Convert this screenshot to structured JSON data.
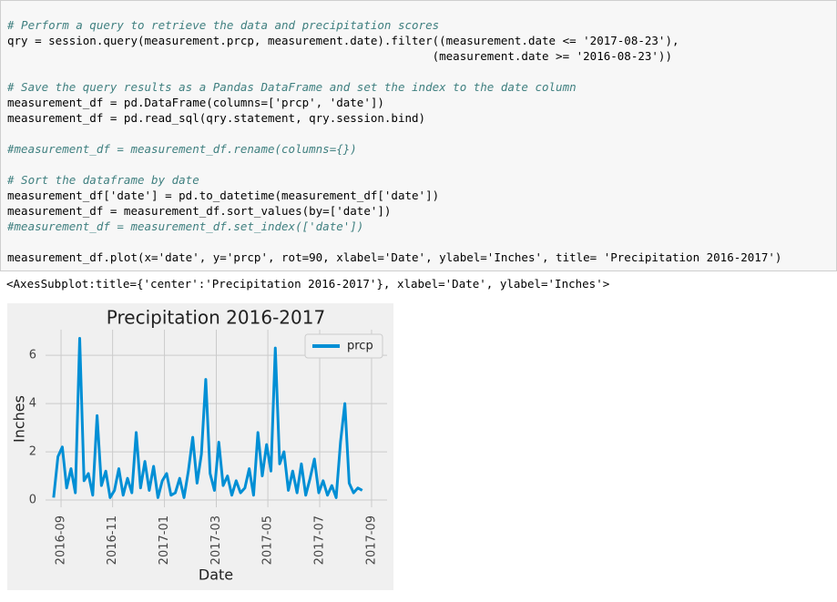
{
  "code": {
    "lines": [
      "# Perform a query to retrieve the data and precipitation scores",
      "qry = session.query(measurement.prcp, measurement.date).filter((measurement.date <= '2017-08-23'),",
      "                                                              (measurement.date >= '2016-08-23'))",
      "# Save the query results as a Pandas DataFrame and set the index to the date column",
      "measurement_df = pd.DataFrame(columns=['prcp', 'date'])",
      "measurement_df = pd.read_sql(qry.statement, qry.session.bind)",
      "#measurement_df = measurement_df.rename(columns={})",
      "# Sort the dataframe by date",
      "measurement_df['date'] = pd.to_datetime(measurement_df['date'])",
      "measurement_df = measurement_df.sort_values(by=['date'])",
      "#measurement_df = measurement_df.set_index(['date'])",
      "measurement_df.plot(x='date', y='prcp', rot=90, xlabel='Date', ylabel='Inches', title= 'Precipitation 2016-2017')"
    ]
  },
  "output": "<AxesSubplot:title={'center':'Precipitation 2016-2017'}, xlabel='Date', ylabel='Inches'>",
  "chart_data": {
    "type": "line",
    "title": "Precipitation 2016-2017",
    "x_label": "Date",
    "y_label": "Inches",
    "x": [
      2016.643,
      2016.657,
      2016.671,
      2016.685,
      2016.699,
      2016.713,
      2016.727,
      2016.741,
      2016.755,
      2016.769,
      2016.783,
      2016.797,
      2016.811,
      2016.825,
      2016.839,
      2016.853,
      2016.867,
      2016.881,
      2016.895,
      2016.909,
      2016.923,
      2016.937,
      2016.951,
      2016.965,
      2016.979,
      2016.993,
      2017.007,
      2017.021,
      2017.035,
      2017.049,
      2017.063,
      2017.077,
      2017.091,
      2017.105,
      2017.119,
      2017.133,
      2017.147,
      2017.161,
      2017.175,
      2017.189,
      2017.203,
      2017.217,
      2017.231,
      2017.245,
      2017.259,
      2017.273,
      2017.287,
      2017.301,
      2017.315,
      2017.329,
      2017.343,
      2017.357,
      2017.371,
      2017.385,
      2017.399,
      2017.413,
      2017.427,
      2017.441,
      2017.455,
      2017.469,
      2017.483,
      2017.497,
      2017.511,
      2017.525,
      2017.539,
      2017.553,
      2017.567,
      2017.581,
      2017.595,
      2017.609,
      2017.623,
      2017.637
    ],
    "series": [
      {
        "name": "prcp",
        "color": "#008fd5",
        "values": [
          0.1,
          1.8,
          2.2,
          0.5,
          1.3,
          0.3,
          6.7,
          0.8,
          1.1,
          0.2,
          3.5,
          0.6,
          1.2,
          0.1,
          0.4,
          1.3,
          0.2,
          0.9,
          0.3,
          2.8,
          0.5,
          1.6,
          0.4,
          1.4,
          0.1,
          0.8,
          1.1,
          0.2,
          0.3,
          0.9,
          0.1,
          1.2,
          2.6,
          0.7,
          1.9,
          5.0,
          1.1,
          0.4,
          2.4,
          0.6,
          1.0,
          0.2,
          0.8,
          0.3,
          0.5,
          1.3,
          0.2,
          2.8,
          1.0,
          2.3,
          1.2,
          6.3,
          1.5,
          2.0,
          0.4,
          1.2,
          0.3,
          1.5,
          0.2,
          0.9,
          1.7,
          0.3,
          0.8,
          0.2,
          0.6,
          0.1,
          2.4,
          4.0,
          0.7,
          0.3,
          0.5,
          0.4
        ]
      }
    ],
    "xlim": [
      2016.617,
      2017.717
    ],
    "xticks": [
      {
        "value": 2016.667,
        "label": "2016-09"
      },
      {
        "value": 2016.833,
        "label": "2016-11"
      },
      {
        "value": 2017.0,
        "label": "2017-01"
      },
      {
        "value": 2017.167,
        "label": "2017-03"
      },
      {
        "value": 2017.333,
        "label": "2017-05"
      },
      {
        "value": 2017.5,
        "label": "2017-07"
      },
      {
        "value": 2017.667,
        "label": "2017-09"
      }
    ],
    "ylim": [
      -0.3,
      7.06
    ],
    "yticks": [
      0,
      2,
      4,
      6
    ],
    "grid": true,
    "legend": "upper right"
  }
}
